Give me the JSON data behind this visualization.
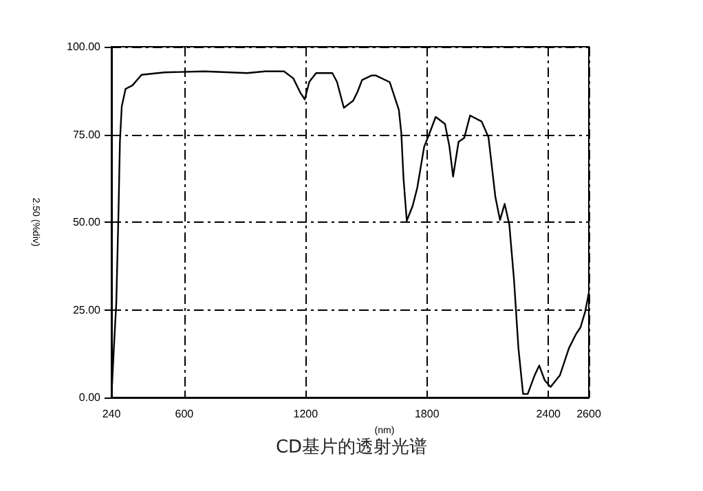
{
  "chart_data": {
    "type": "line",
    "title": "CD基片的透射光谱",
    "xlabel": "(nm)",
    "ylabel": "2.50 (%div)",
    "xlim": [
      240,
      2600
    ],
    "ylim": [
      0,
      100
    ],
    "xticks": [
      240,
      600,
      1200,
      1800,
      2400,
      2600
    ],
    "yticks": [
      {
        "value": 0,
        "label": "0.00"
      },
      {
        "value": 25,
        "label": "25.00"
      },
      {
        "value": 50,
        "label": "50.00"
      },
      {
        "value": 75,
        "label": "75.00"
      },
      {
        "value": 100,
        "label": "100.00"
      }
    ],
    "grid": true,
    "marker": "none",
    "line_style": "solid",
    "series": [
      {
        "color": "#000000",
        "x": [
          240,
          252,
          264,
          275,
          282,
          291,
          310,
          344,
          389,
          502,
          700,
          911,
          1000,
          1093,
          1139,
          1173,
          1196,
          1218,
          1252,
          1332,
          1355,
          1389,
          1435,
          1457,
          1479,
          1525,
          1548,
          1616,
          1661,
          1673,
          1684,
          1700,
          1729,
          1752,
          1786,
          1809,
          1843,
          1889,
          1911,
          1929,
          1956,
          1984,
          2013,
          2070,
          2104,
          2138,
          2161,
          2184,
          2207,
          2230,
          2252,
          2275,
          2298,
          2332,
          2355,
          2382,
          2411,
          2457,
          2502,
          2536,
          2559,
          2582,
          2600
        ],
        "values": [
          0,
          14,
          27,
          53,
          73,
          83,
          88,
          89,
          92,
          92.7,
          93,
          92.5,
          93,
          93,
          91,
          87,
          85,
          90,
          92.5,
          92.5,
          90,
          82.6,
          84.6,
          87.2,
          90.5,
          91.8,
          91.8,
          89.9,
          82,
          75.4,
          62.4,
          50.4,
          54.6,
          59.8,
          71.5,
          74.8,
          80,
          78,
          71.5,
          63,
          72.9,
          74,
          80.4,
          78.7,
          74.2,
          57.2,
          50.6,
          55.2,
          49.3,
          33.7,
          14.1,
          1,
          1,
          6.3,
          9.1,
          4.9,
          3,
          6.3,
          14.1,
          18,
          20,
          24.5,
          29.8
        ]
      }
    ]
  }
}
